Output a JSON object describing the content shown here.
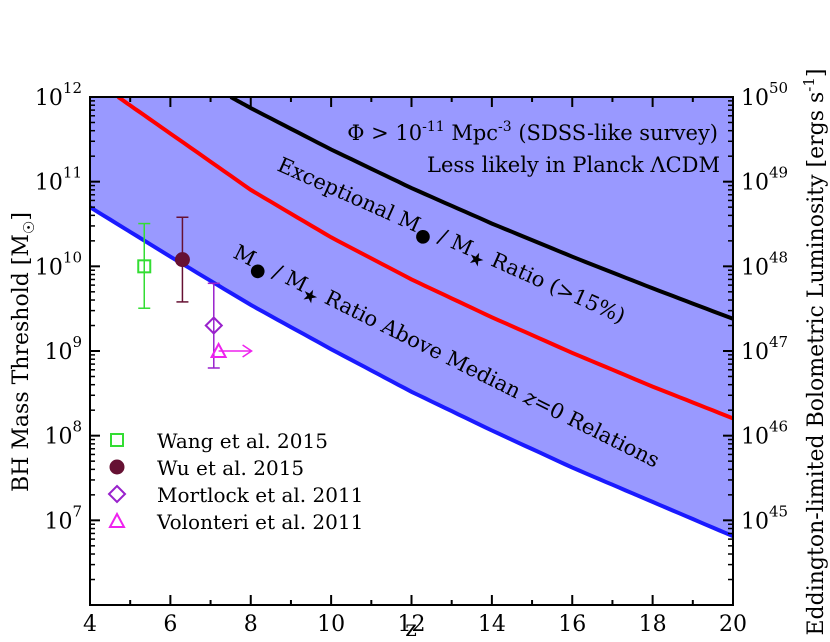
{
  "chart_data": {
    "type": "area",
    "xlabel": "z",
    "ylabel": "BH Mass Threshold [M",
    "ylabel_sub": "☉",
    "y2label": "Eddington-limited Bolometric Luminosity [ergs s",
    "y2label_sup": "-1",
    "xlim": [
      4,
      20
    ],
    "ylim": [
      1000000.0,
      1000000000000.0
    ],
    "y2lim": [
      1e+44,
      1e+50
    ],
    "yscale": "log",
    "x_ticks": [
      "4",
      "6",
      "8",
      "10",
      "12",
      "14",
      "16",
      "18",
      "20"
    ],
    "y_ticks": [
      {
        "base": "10",
        "exp": "7",
        "value": 10000000.0
      },
      {
        "base": "10",
        "exp": "8",
        "value": 100000000.0
      },
      {
        "base": "10",
        "exp": "9",
        "value": 1000000000.0
      },
      {
        "base": "10",
        "exp": "10",
        "value": 10000000000.0
      },
      {
        "base": "10",
        "exp": "11",
        "value": 100000000000.0
      },
      {
        "base": "10",
        "exp": "12",
        "value": 1000000000000.0
      }
    ],
    "y2_ticks": [
      {
        "base": "10",
        "exp": "45",
        "value": 1e+45
      },
      {
        "base": "10",
        "exp": "46",
        "value": 1e+46
      },
      {
        "base": "10",
        "exp": "47",
        "value": 1e+47
      },
      {
        "base": "10",
        "exp": "48",
        "value": 1e+48
      },
      {
        "base": "10",
        "exp": "49",
        "value": 1e+49
      },
      {
        "base": "10",
        "exp": "50",
        "value": 1e+50
      }
    ],
    "curves": [
      {
        "id": "median",
        "color": "#1a1aff",
        "fill": "#9999ff",
        "x": [
          4,
          6,
          8,
          10,
          12,
          14,
          16,
          18,
          20
        ],
        "y": [
          50000000000.0,
          13000000000.0,
          3500000000.0,
          1050000000.0,
          330000000.0,
          115000000.0,
          42000000.0,
          16500000.0,
          6500000.0
        ]
      },
      {
        "id": "exceptional",
        "color": "#ff0000",
        "fill": "#ff9999",
        "x": [
          4.7,
          6,
          8,
          10,
          12,
          14,
          16,
          18,
          20
        ],
        "y": [
          1000000000000.0,
          370000000000.0,
          80000000000.0,
          22000000000.0,
          7000000000.0,
          2500000000.0,
          950000000.0,
          380000000.0,
          160000000.0
        ]
      },
      {
        "id": "survey",
        "color": "#000000",
        "fill": "#b3b3b3",
        "x": [
          7.5,
          8,
          10,
          12,
          14,
          16,
          18,
          20
        ],
        "y": [
          1000000000000.0,
          740000000000.0,
          240000000000.0,
          84000000000.0,
          32000000000.0,
          13000000000.0,
          5500000000.0,
          2400000000.0
        ]
      }
    ],
    "annotations": {
      "survey": {
        "phi": "Φ > 10",
        "phi_exp": "-11",
        "mpc": " Mpc",
        "mpc_exp": "-3",
        "rest": " (SDSS-like survey)"
      },
      "planck": "Less likely in Planck ΛCDM",
      "exceptional": {
        "pre": "Exceptional M",
        "mid": " / M",
        "post": " Ratio (>15%)"
      },
      "median": {
        "pre": "M",
        "mid": " / M",
        "post": " Ratio Above Median ",
        "zvar": "z",
        "tail": "=0 Relations"
      }
    },
    "series": [
      {
        "name": "Wang et al. 2015",
        "marker": "open-square",
        "color": "#33dd33",
        "x": 5.35,
        "y": 10000000000.0,
        "yerr": [
          3200000000.0,
          32000000000.0
        ]
      },
      {
        "name": "Wu et al. 2015",
        "marker": "filled-circle",
        "color": "#661133",
        "x": 6.3,
        "y": 12000000000.0,
        "yerr": [
          3800000000.0,
          38000000000.0
        ]
      },
      {
        "name": "Mortlock et al. 2011",
        "marker": "open-diamond",
        "color": "#9922cc",
        "x": 7.08,
        "y": 2000000000.0,
        "yerr": [
          630000000.0,
          6300000000.0
        ]
      },
      {
        "name": "Volonteri et al. 2011",
        "marker": "open-triangle",
        "color": "#ee22ee",
        "x": 7.2,
        "y": 1000000000.0,
        "arrow": "right"
      }
    ]
  }
}
